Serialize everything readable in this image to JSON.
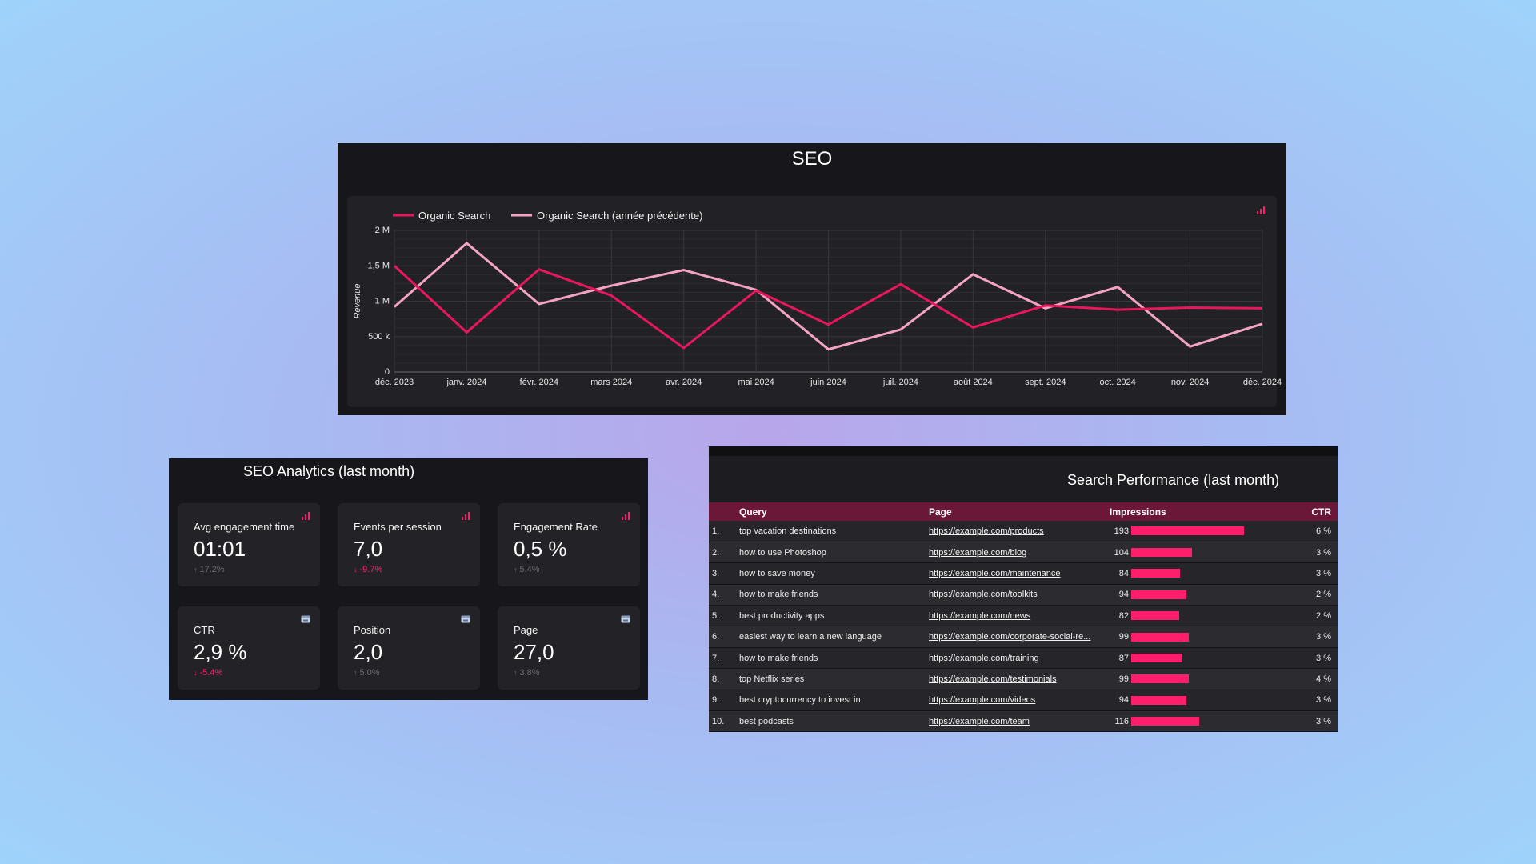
{
  "seo_panel": {
    "title": "SEO",
    "icon": "bar-chart-icon"
  },
  "chart_data": {
    "type": "line",
    "title": "SEO",
    "ylabel": "Revenue",
    "xlabel": "",
    "ylim": [
      0,
      2000000
    ],
    "y_ticks": [
      "0",
      "500 k",
      "1 M",
      "1,5 M",
      "2 M"
    ],
    "categories": [
      "déc. 2023",
      "janv. 2024",
      "févr. 2024",
      "mars 2024",
      "avr. 2024",
      "mai 2024",
      "juin 2024",
      "juil. 2024",
      "août 2024",
      "sept. 2024",
      "oct. 2024",
      "nov. 2024",
      "déc. 2024"
    ],
    "series": [
      {
        "name": "Organic Search",
        "color": "#e8175d",
        "values": [
          1500000,
          560000,
          1450000,
          1080000,
          340000,
          1150000,
          670000,
          1240000,
          630000,
          940000,
          880000,
          910000,
          900000
        ]
      },
      {
        "name": "Organic Search (année précédente)",
        "color": "#f4a3c0",
        "values": [
          920000,
          1820000,
          960000,
          1220000,
          1440000,
          1160000,
          320000,
          600000,
          1380000,
          900000,
          1200000,
          360000,
          680000
        ]
      }
    ],
    "legend": "top-left",
    "grid": true
  },
  "analytics": {
    "title": "SEO Analytics (last month)",
    "cards": [
      {
        "label": "Avg engagement time",
        "value": "01:01",
        "delta": "17.2%",
        "trend": "up",
        "status": "neutral",
        "icon": "bar-chart-icon"
      },
      {
        "label": "Events per session",
        "value": "7,0",
        "delta": "-9.7%",
        "trend": "down",
        "status": "negative",
        "icon": "bar-chart-icon"
      },
      {
        "label": "Engagement Rate",
        "value": "0,5 %",
        "delta": "5.4%",
        "trend": "up",
        "status": "neutral",
        "icon": "bar-chart-icon"
      },
      {
        "label": "CTR",
        "value": "2,9 %",
        "delta": "-5.4%",
        "trend": "down",
        "status": "negative",
        "icon": "search-console-icon"
      },
      {
        "label": "Position",
        "value": "2,0",
        "delta": "5.0%",
        "trend": "up",
        "status": "neutral",
        "icon": "search-console-icon"
      },
      {
        "label": "Page",
        "value": "27,0",
        "delta": "3.8%",
        "trend": "up",
        "status": "neutral",
        "icon": "search-console-icon"
      }
    ]
  },
  "table": {
    "title": "Search Performance (last month)",
    "headers": {
      "num": "",
      "query": "Query",
      "page": "Page",
      "impressions": "Impressions",
      "ctr": "CTR"
    },
    "max_impressions": 193,
    "rows": [
      {
        "num": "1.",
        "query": "top vacation destinations",
        "page": "https://example.com/products",
        "impressions": 193,
        "ctr": "6 %"
      },
      {
        "num": "2.",
        "query": "how to use Photoshop",
        "page": "https://example.com/blog",
        "impressions": 104,
        "ctr": "3 %"
      },
      {
        "num": "3.",
        "query": "how to save money",
        "page": "https://example.com/maintenance",
        "impressions": 84,
        "ctr": "3 %"
      },
      {
        "num": "4.",
        "query": "how to make friends",
        "page": "https://example.com/toolkits",
        "impressions": 94,
        "ctr": "2 %"
      },
      {
        "num": "5.",
        "query": "best productivity apps",
        "page": "https://example.com/news",
        "impressions": 82,
        "ctr": "2 %"
      },
      {
        "num": "6.",
        "query": "easiest way to learn a new language",
        "page": "https://example.com/corporate-social-re...",
        "impressions": 99,
        "ctr": "3 %"
      },
      {
        "num": "7.",
        "query": "how to make friends",
        "page": "https://example.com/training",
        "impressions": 87,
        "ctr": "3 %"
      },
      {
        "num": "8.",
        "query": "top Netflix series",
        "page": "https://example.com/testimonials",
        "impressions": 99,
        "ctr": "4 %"
      },
      {
        "num": "9.",
        "query": "best cryptocurrency to invest in",
        "page": "https://example.com/videos",
        "impressions": 94,
        "ctr": "3 %"
      },
      {
        "num": "10.",
        "query": "best podcasts",
        "page": "https://example.com/team",
        "impressions": 116,
        "ctr": "3 %"
      }
    ]
  },
  "colors": {
    "accent": "#ff1e6b",
    "series_primary": "#e8175d",
    "series_previous": "#f4a3c0",
    "header_row": "#6b1738",
    "panel_bg": "#17161a"
  }
}
